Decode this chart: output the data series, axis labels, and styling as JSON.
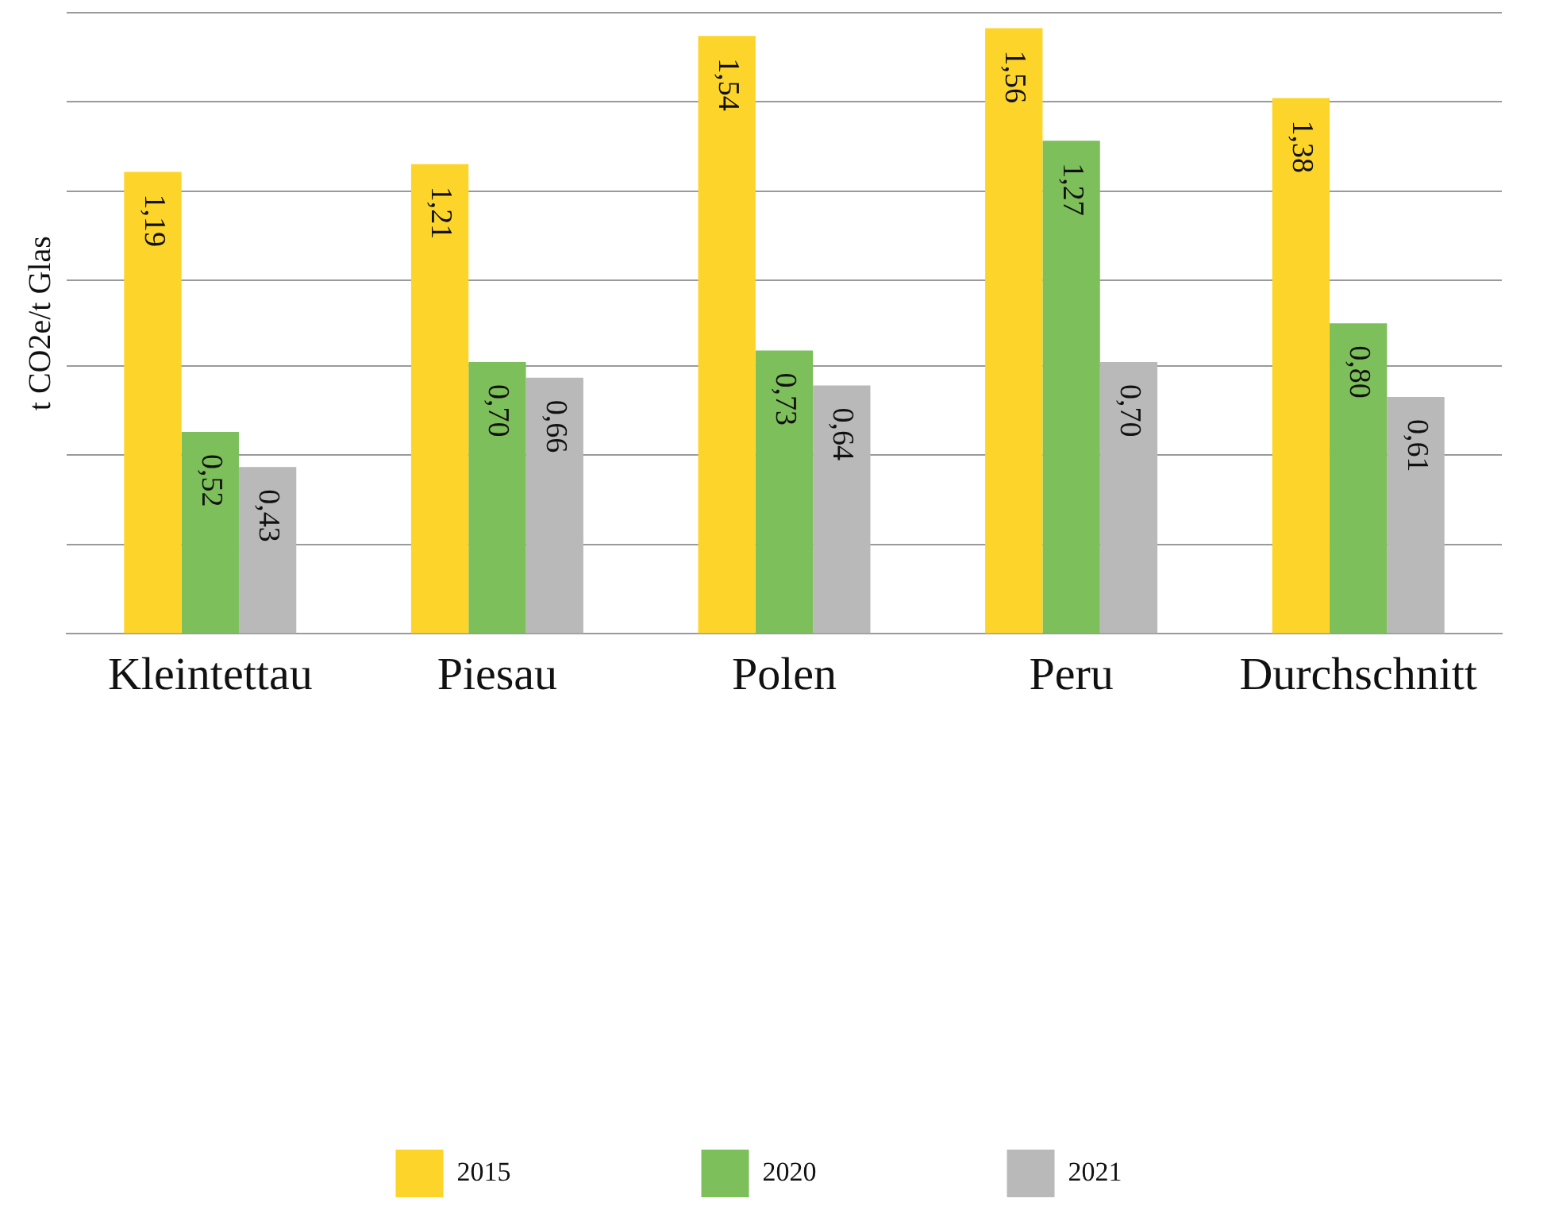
{
  "chart_data": {
    "type": "bar",
    "ylabel": "t CO2e/t Glas",
    "categories": [
      "Kleintettau",
      "Piesau",
      "Polen",
      "Peru",
      "Durchschnitt"
    ],
    "series": [
      {
        "name": "2015",
        "color": "#fdd52a",
        "values": [
          1.19,
          1.21,
          1.54,
          1.56,
          1.38
        ],
        "value_labels": [
          "1,19",
          "1,21",
          "1,54",
          "1,56",
          "1,38"
        ]
      },
      {
        "name": "2020",
        "color": "#7dbf5a",
        "values": [
          0.52,
          0.7,
          0.73,
          1.27,
          0.8
        ],
        "value_labels": [
          "0,52",
          "0,70",
          "0,73",
          "1,27",
          "0,80"
        ]
      },
      {
        "name": "2021",
        "color": "#b9b9b9",
        "values": [
          0.43,
          0.66,
          0.64,
          0.7,
          0.61
        ],
        "value_labels": [
          "0,43",
          "0,66",
          "0,64",
          "0,70",
          "0,61"
        ]
      }
    ],
    "ylim": [
      0,
      1.6
    ],
    "yticks": [
      {
        "value": 0,
        "label": null
      },
      {
        "value": 0.23,
        "label": null
      },
      {
        "value": 0.46,
        "label": null
      },
      {
        "value": 0.69,
        "label": null
      },
      {
        "value": 0.91,
        "label": null
      },
      {
        "value": 1.14,
        "label": null
      },
      {
        "value": 1.37,
        "label": null
      },
      {
        "value": 1.6,
        "label": null
      }
    ],
    "grid": "y",
    "tick_labels": "x",
    "legend": "bottom"
  }
}
